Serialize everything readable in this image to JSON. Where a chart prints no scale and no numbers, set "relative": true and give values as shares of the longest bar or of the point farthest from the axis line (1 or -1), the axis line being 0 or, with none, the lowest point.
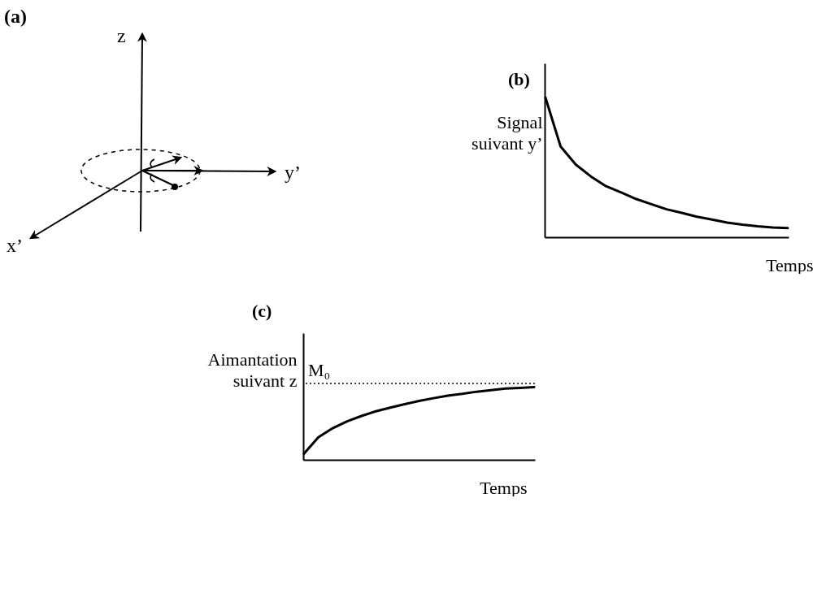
{
  "chart_data": [
    {
      "type": "other",
      "title": "(a)",
      "annotations": [
        "z",
        "y’",
        "x’"
      ]
    },
    {
      "type": "line",
      "title": "(b)",
      "xlabel": "Temps",
      "ylabel": "Signal\nsuivant y’",
      "relative": true,
      "grid": false,
      "legend": false,
      "categories": [
        null,
        null,
        null,
        null,
        null,
        null,
        null,
        null,
        null,
        null,
        null,
        null,
        null,
        null,
        null,
        null,
        null
      ],
      "series": [
        {
          "color": "#000000",
          "values": [
            1.0,
            0.65,
            0.52,
            0.435,
            0.365,
            0.32,
            0.273,
            0.236,
            0.2,
            0.174,
            0.147,
            0.127,
            0.105,
            0.09,
            0.078,
            0.07,
            0.066
          ]
        }
      ]
    },
    {
      "type": "line",
      "title": "(c)",
      "xlabel": "Temps",
      "ylabel": "Aimantation\nsuivant z",
      "relative": true,
      "grid": false,
      "legend": false,
      "categories": [
        null,
        null,
        null,
        null,
        null,
        null,
        null,
        null,
        null,
        null,
        null,
        null,
        null,
        null,
        null,
        null,
        null
      ],
      "series": [
        {
          "color": "#000000",
          "values": [
            0.083,
            0.31,
            0.435,
            0.53,
            0.603,
            0.668,
            0.718,
            0.766,
            0.81,
            0.848,
            0.882,
            0.907,
            0.937,
            0.958,
            0.98,
            0.99,
            1.0
          ]
        }
      ],
      "ref_lines": [
        {
          "axis": "y",
          "value": 1.05,
          "label": "M₀",
          "color": "#000000",
          "line_style": "dotted"
        }
      ]
    }
  ]
}
